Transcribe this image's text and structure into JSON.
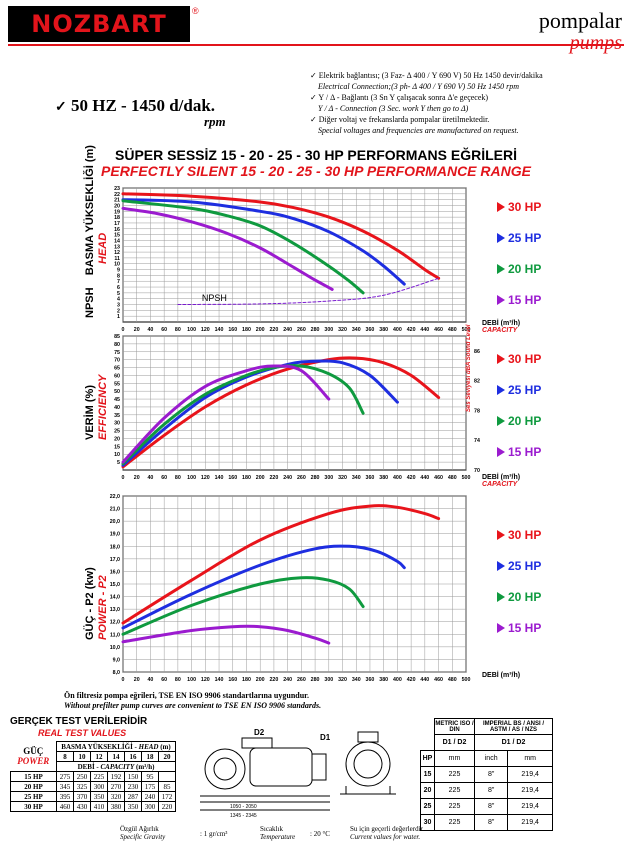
{
  "brand": {
    "logo": "NOZBART",
    "logo_reg": "®",
    "title_tr": "pompalar",
    "title_en": "pumps"
  },
  "spec": {
    "frequency": "50 HZ - 1450 d/dak.",
    "rpm": "rpm"
  },
  "notes": [
    {
      "text": "Elektrik bağlantısı; (3 Faz- Δ 400 / Y 690 V) 50 Hz 1450 devir/dakika",
      "italic": false,
      "bullet": true
    },
    {
      "text": "Electrical Connection;(3 ph- Δ 400 / Y 690 V) 50 Hz 1450 rpm",
      "italic": true,
      "bullet": false
    },
    {
      "text": "Y / Δ - Bağlantı (3 Sn Y çalışacak sonra Δ'e geçecek)",
      "italic": false,
      "bullet": true
    },
    {
      "text": "Y / Δ - Connection (3 Sec. work Y then go to Δ)",
      "italic": true,
      "bullet": false
    },
    {
      "text": "Diğer voltaj ve frekanslarda pompalar üretilmektedir.",
      "italic": false,
      "bullet": true
    },
    {
      "text": "Special voltages and frequencies are manufactured on request.",
      "italic": true,
      "bullet": false
    }
  ],
  "title": {
    "tr": "SÜPER SESSİZ 15 - 20 - 25 - 30 HP PERFORMANS EĞRİLERİ",
    "en": "PERFECTLY SILENT 15 - 20 - 25 - 30 HP PERFORMANCE RANGE"
  },
  "colors": {
    "hp30": "#e8141b",
    "hp25": "#1e2ee0",
    "hp20": "#0f9a3f",
    "hp15": "#9b1bcf",
    "brand_red": "#e2141b"
  },
  "legend": [
    "30 HP",
    "25 HP",
    "20 HP",
    "15 HP"
  ],
  "axis_labels": {
    "head_tr": "BASMA YÜKSEKLİĞİ (m)",
    "head_en": "HEAD",
    "npsh": "NPSH",
    "npsh_curve_label": "NPSH",
    "eff_tr": "VERİM (%)",
    "eff_en": "EFFICIENCY",
    "power_tr": "GÜÇ - P2 (kw)",
    "power_en": "POWER - P2",
    "debi_tr": "DEBİ (m³/h)",
    "debi_en": "CAPACITY",
    "sound": "Ses Seviyesi dBA Sound Level"
  },
  "chart_data": [
    {
      "type": "line",
      "title": "",
      "xlabel": "DEBİ (m³/h) CAPACITY",
      "ylabel": "BASMA YÜKSEKLİĞİ (m) HEAD",
      "xlim": [
        0,
        500
      ],
      "ylim": [
        0,
        23
      ],
      "x_ticks": [
        0,
        20,
        40,
        60,
        80,
        100,
        120,
        140,
        160,
        180,
        200,
        220,
        240,
        260,
        280,
        300,
        320,
        340,
        360,
        380,
        400,
        420,
        440,
        460,
        480,
        500
      ],
      "y_ticks": [
        1,
        2,
        3,
        4,
        5,
        6,
        7,
        8,
        9,
        10,
        11,
        12,
        13,
        14,
        15,
        16,
        17,
        18,
        19,
        20,
        21,
        22,
        23
      ],
      "series": [
        {
          "name": "30 HP",
          "x": [
            0,
            100,
            200,
            250,
            300,
            350,
            400,
            440,
            460
          ],
          "y": [
            22,
            21.6,
            20.6,
            19.6,
            18,
            15.6,
            12.3,
            9,
            7.5
          ]
        },
        {
          "name": "25 HP",
          "x": [
            0,
            100,
            200,
            250,
            300,
            350,
            380,
            410
          ],
          "y": [
            21,
            20.6,
            19,
            17.7,
            15.5,
            12.2,
            9.6,
            6.5
          ]
        },
        {
          "name": "20 HP",
          "x": [
            0,
            100,
            150,
            200,
            250,
            300,
            330,
            350
          ],
          "y": [
            20.8,
            19.5,
            18.3,
            16.5,
            13.4,
            9.6,
            7,
            5
          ]
        },
        {
          "name": "15 HP",
          "x": [
            0,
            50,
            100,
            150,
            200,
            250,
            280,
            305
          ],
          "y": [
            19.5,
            18.6,
            17.2,
            15.3,
            12.7,
            9.3,
            7.2,
            5.6
          ]
        },
        {
          "name": "NPSH",
          "x": [
            80,
            200,
            300,
            380,
            460
          ],
          "y": [
            3,
            3.1,
            3.6,
            4.6,
            7.5
          ]
        }
      ]
    },
    {
      "type": "line",
      "title": "",
      "xlabel": "DEBİ (m³/h) CAPACITY",
      "ylabel": "VERİM (%) EFFICIENCY",
      "xlim": [
        0,
        500
      ],
      "ylim": [
        0,
        85
      ],
      "x_ticks": [
        0,
        20,
        40,
        60,
        80,
        100,
        120,
        140,
        160,
        180,
        200,
        220,
        240,
        260,
        280,
        300,
        320,
        340,
        360,
        380,
        400,
        420,
        440,
        460,
        480,
        500
      ],
      "y_ticks": [
        5,
        10,
        15,
        20,
        25,
        30,
        35,
        40,
        45,
        50,
        55,
        60,
        65,
        70,
        75,
        80,
        85
      ],
      "sound_ticks": [
        70,
        72,
        74,
        76,
        78,
        80,
        82,
        84,
        86,
        88
      ],
      "series": [
        {
          "name": "30 HP",
          "x": [
            0,
            60,
            120,
            180,
            240,
            300,
            340,
            380,
            420,
            460
          ],
          "y": [
            2,
            22,
            40,
            54,
            64,
            70,
            71,
            68,
            60,
            46
          ]
        },
        {
          "name": "25 HP",
          "x": [
            0,
            60,
            120,
            180,
            240,
            280,
            320,
            360,
            400
          ],
          "y": [
            3,
            26,
            46,
            59,
            67,
            69,
            68,
            60,
            43
          ]
        },
        {
          "name": "20 HP",
          "x": [
            0,
            60,
            120,
            180,
            220,
            260,
            300,
            330,
            350
          ],
          "y": [
            4,
            29,
            48,
            60,
            65,
            66,
            61,
            52,
            36
          ]
        },
        {
          "name": "15 HP",
          "x": [
            0,
            60,
            120,
            180,
            220,
            260,
            300
          ],
          "y": [
            5,
            33,
            53,
            63,
            66,
            63,
            45
          ]
        }
      ]
    },
    {
      "type": "line",
      "title": "",
      "xlabel": "DEBİ (m³/h) CAPACITY",
      "ylabel": "GÜÇ - P2 (kw) POWER - P2",
      "xlim": [
        0,
        500
      ],
      "ylim": [
        8,
        22
      ],
      "x_ticks": [
        0,
        20,
        40,
        60,
        80,
        100,
        120,
        140,
        160,
        180,
        200,
        220,
        240,
        260,
        280,
        300,
        320,
        340,
        360,
        380,
        400,
        420,
        440,
        460,
        480,
        500
      ],
      "y_ticks": [
        8,
        9,
        10,
        11,
        12,
        13,
        14,
        15,
        16,
        17,
        18,
        19,
        20,
        21,
        22
      ],
      "series": [
        {
          "name": "30 HP",
          "x": [
            0,
            100,
            200,
            300,
            360,
            400,
            440,
            460
          ],
          "y": [
            11.9,
            15.3,
            18.5,
            20.6,
            21.2,
            21.1,
            20.6,
            20.2
          ]
        },
        {
          "name": "25 HP",
          "x": [
            0,
            100,
            200,
            280,
            330,
            370,
            400,
            410
          ],
          "y": [
            11.5,
            14.2,
            16.5,
            17.8,
            18,
            17.6,
            16.8,
            16.3
          ]
        },
        {
          "name": "20 HP",
          "x": [
            0,
            100,
            200,
            260,
            300,
            330,
            350
          ],
          "y": [
            11,
            13.3,
            15,
            15.5,
            15.3,
            14.6,
            13.2
          ]
        },
        {
          "name": "15 HP",
          "x": [
            0,
            100,
            160,
            200,
            240,
            280,
            300
          ],
          "y": [
            10.4,
            11.3,
            11.6,
            11.6,
            11.3,
            10.7,
            10.3
          ]
        }
      ]
    }
  ],
  "footnote": {
    "tr": "Ön filtresiz pompa eğrileri, TSE EN ISO 9906 standartlarına uygundur.",
    "en": "Without prefilter pump curves are convenient to TSE EN ISO 9906 standards."
  },
  "test_table": {
    "title_tr": "GERÇEK TEST VERİLERİDİR",
    "title_en": "REAL TEST VALUES",
    "guc_tr": "GÜÇ",
    "guc_en": "POWER",
    "head_label_tr": "BASMA YÜKSEKLİĞİ - ",
    "head_label_en": "HEAD",
    "head_unit": " (m)",
    "heads": [
      "8",
      "10",
      "12",
      "14",
      "16",
      "18",
      "20"
    ],
    "debi_label_tr": "DEBİ - ",
    "debi_label_en": "CAPACITY",
    "debi_unit": " (m³/h)",
    "rows": [
      {
        "hp": "15 HP",
        "vals": [
          "275",
          "250",
          "225",
          "192",
          "150",
          "95",
          ""
        ]
      },
      {
        "hp": "20 HP",
        "vals": [
          "345",
          "325",
          "300",
          "270",
          "230",
          "175",
          "85"
        ]
      },
      {
        "hp": "25 HP",
        "vals": [
          "395",
          "370",
          "350",
          "320",
          "287",
          "240",
          "172"
        ]
      },
      {
        "hp": "30 HP",
        "vals": [
          "460",
          "430",
          "410",
          "380",
          "350",
          "300",
          "220"
        ]
      }
    ]
  },
  "drawing": {
    "d2": "D2",
    "d1": "D1",
    "dim1": "1050 - 2050",
    "dim2": "1345 - 2345"
  },
  "dim_table": {
    "metric": "METRIC ISO / DIN",
    "imperial": "IMPERIAL BS / ANSI / ASTM / AS / NZS",
    "hp": "HP",
    "d1d2": "D1 / D2",
    "d1d2b": "D1 / D2",
    "mm": "mm",
    "inch": "inch",
    "mm2": "mm",
    "rows": [
      {
        "hp": "15",
        "metric": "225",
        "inch": "8\"",
        "mm": "219,4"
      },
      {
        "hp": "20",
        "metric": "225",
        "inch": "8\"",
        "mm": "219,4"
      },
      {
        "hp": "25",
        "metric": "225",
        "inch": "8\"",
        "mm": "219,4"
      },
      {
        "hp": "30",
        "metric": "225",
        "inch": "8\"",
        "mm": "219,4"
      }
    ]
  },
  "bottom": {
    "sg_tr": "Özgül Ağırlık",
    "sg_en": "Specific Gravity",
    "sg_val": ": 1 gr/cm³",
    "temp_tr": "Sıcaklık",
    "temp_en": "Temperature",
    "temp_val": ": 20 °C",
    "water_tr": "Su için geçerli değerlerdir.",
    "water_en": "Current values for water."
  }
}
